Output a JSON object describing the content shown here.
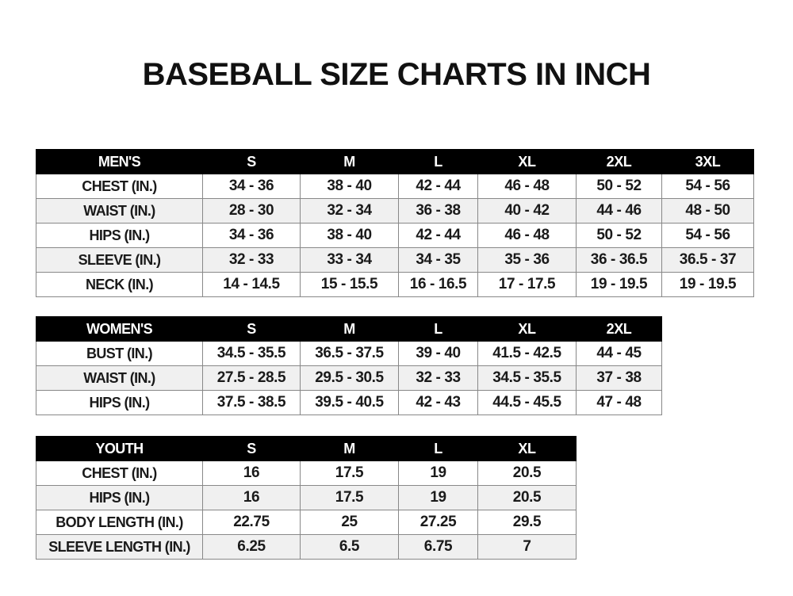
{
  "title": "BASEBALL SIZE CHARTS IN INCH",
  "tables": {
    "men": {
      "header": [
        "MEN'S",
        "S",
        "M",
        "L",
        "XL",
        "2XL",
        "3XL"
      ],
      "rows": [
        [
          "CHEST (IN.)",
          "34 - 36",
          "38 - 40",
          "42 - 44",
          "46 - 48",
          "50 - 52",
          "54 - 56"
        ],
        [
          "WAIST (IN.)",
          "28 - 30",
          "32 - 34",
          "36 - 38",
          "40 - 42",
          "44 - 46",
          "48 - 50"
        ],
        [
          "HIPS (IN.)",
          "34 - 36",
          "38 - 40",
          "42 - 44",
          "46 - 48",
          "50 - 52",
          "54 - 56"
        ],
        [
          "SLEEVE (IN.)",
          "32 - 33",
          "33 - 34",
          "34 - 35",
          "35 - 36",
          "36 - 36.5",
          "36.5 - 37"
        ],
        [
          "NECK (IN.)",
          "14 - 14.5",
          "15 - 15.5",
          "16 - 16.5",
          "17 - 17.5",
          "19 - 19.5",
          "19 - 19.5"
        ]
      ]
    },
    "women": {
      "header": [
        "WOMEN'S",
        "S",
        "M",
        "L",
        "XL",
        "2XL"
      ],
      "rows": [
        [
          "BUST (IN.)",
          "34.5 - 35.5",
          "36.5 - 37.5",
          "39 - 40",
          "41.5 - 42.5",
          "44 - 45"
        ],
        [
          "WAIST (IN.)",
          "27.5 - 28.5",
          "29.5 - 30.5",
          "32 - 33",
          "34.5 - 35.5",
          "37 - 38"
        ],
        [
          "HIPS (IN.)",
          "37.5 - 38.5",
          "39.5 - 40.5",
          "42 - 43",
          "44.5 - 45.5",
          "47 - 48"
        ]
      ]
    },
    "youth": {
      "header": [
        "YOUTH",
        "S",
        "M",
        "L",
        "XL"
      ],
      "rows": [
        [
          "CHEST (IN.)",
          "16",
          "17.5",
          "19",
          "20.5"
        ],
        [
          "HIPS (IN.)",
          "16",
          "17.5",
          "19",
          "20.5"
        ],
        [
          "BODY LENGTH (IN.)",
          "22.75",
          "25",
          "27.25",
          "29.5"
        ],
        [
          "SLEEVE LENGTH (IN.)",
          "6.25",
          "6.5",
          "6.75",
          "7"
        ]
      ]
    }
  }
}
